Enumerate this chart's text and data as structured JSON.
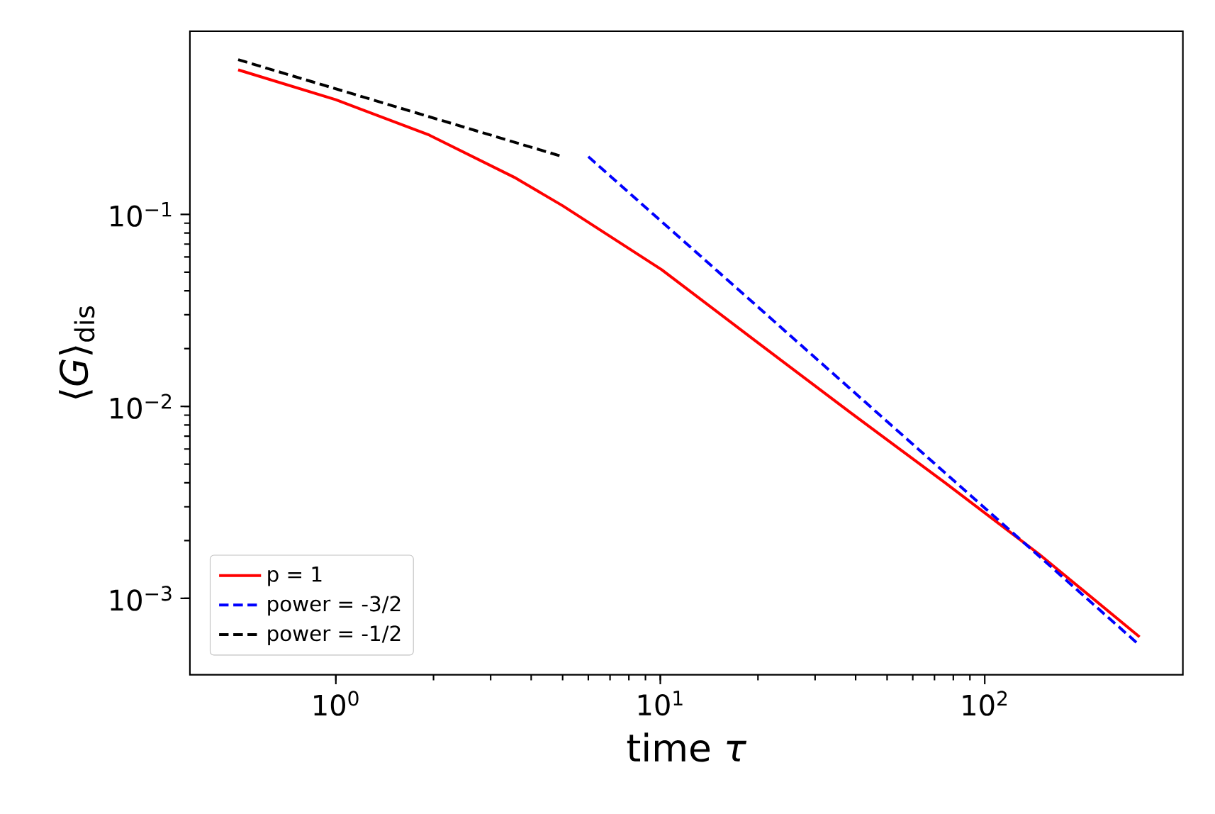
{
  "chart_data": {
    "type": "line",
    "xlabel": "time *τ*",
    "ylabel": "⟨*G*⟩$_{dis}$",
    "log": "xy",
    "xlim": [
      0.355,
      408
    ],
    "ylim": [
      0.0004,
      0.9
    ],
    "xticks": [
      {
        "value": 1,
        "label": "10$^{0}$"
      },
      {
        "value": 10,
        "label": "10$^{1}$"
      },
      {
        "value": 100,
        "label": "10$^{2}$"
      }
    ],
    "yticks": [
      {
        "value": 0.001,
        "label": "10$^{−3}$"
      },
      {
        "value": 0.01,
        "label": "10$^{−2}$"
      },
      {
        "value": 0.1,
        "label": "10$^{−1}$"
      }
    ],
    "legend": "bottom left",
    "grid": false,
    "series": [
      {
        "name": "p = 1",
        "color": "#ff0000",
        "line_style": "solid",
        "x": [
          0.5,
          1,
          1.94,
          3.55,
          5.0,
          10.1,
          19.6,
          38.5,
          75.5,
          147,
          300
        ],
        "values": [
          0.566,
          0.396,
          0.259,
          0.156,
          0.111,
          0.0515,
          0.022,
          0.0093,
          0.004,
          0.0017,
          0.00063
        ]
      },
      {
        "name": "power = -3/2",
        "color": "#0000ff",
        "line_style": "dashed",
        "x": [
          6,
          300
        ],
        "values": [
          0.2,
          0.00057
        ]
      },
      {
        "name": "power = -1/2",
        "color": "#000000",
        "line_style": "dashed",
        "x": [
          0.5,
          5
        ],
        "values": [
          0.64,
          0.2
        ]
      }
    ]
  }
}
